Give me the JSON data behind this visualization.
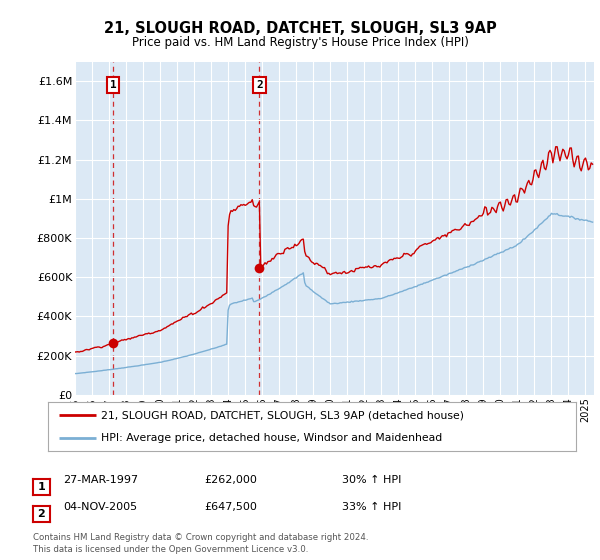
{
  "title": "21, SLOUGH ROAD, DATCHET, SLOUGH, SL3 9AP",
  "subtitle": "Price paid vs. HM Land Registry's House Price Index (HPI)",
  "bg_color": "#dce9f5",
  "line1_color": "#cc0000",
  "line2_color": "#7bafd4",
  "ylim": [
    0,
    1700000
  ],
  "yticks": [
    0,
    200000,
    400000,
    600000,
    800000,
    1000000,
    1200000,
    1400000,
    1600000
  ],
  "ytick_labels": [
    "£0",
    "£200K",
    "£400K",
    "£600K",
    "£800K",
    "£1M",
    "£1.2M",
    "£1.4M",
    "£1.6M"
  ],
  "xlim_start": 1995.0,
  "xlim_end": 2025.5,
  "sale1_year": 1997.23,
  "sale1_price": 262000,
  "sale2_year": 2005.84,
  "sale2_price": 647500,
  "legend_line1": "21, SLOUGH ROAD, DATCHET, SLOUGH, SL3 9AP (detached house)",
  "legend_line2": "HPI: Average price, detached house, Windsor and Maidenhead",
  "annotation1_date": "27-MAR-1997",
  "annotation1_price": "£262,000",
  "annotation1_hpi": "30% ↑ HPI",
  "annotation2_date": "04-NOV-2005",
  "annotation2_price": "£647,500",
  "annotation2_hpi": "33% ↑ HPI",
  "footer": "Contains HM Land Registry data © Crown copyright and database right 2024.\nThis data is licensed under the Open Government Licence v3.0."
}
